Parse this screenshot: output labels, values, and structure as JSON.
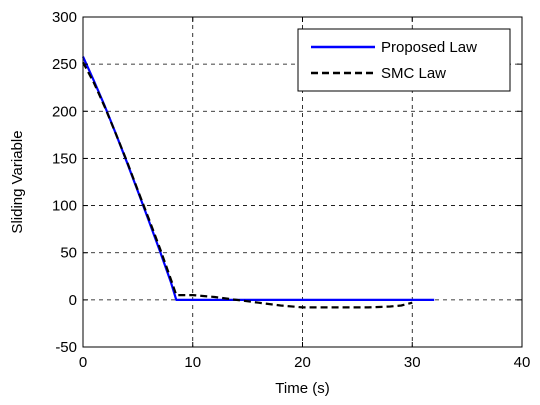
{
  "chart_data": {
    "type": "line",
    "title": "",
    "xlabel": "Time (s)",
    "ylabel": "Sliding Variable",
    "xlim": [
      0,
      40
    ],
    "ylim": [
      -50,
      300
    ],
    "xticks": [
      0,
      10,
      20,
      30,
      40
    ],
    "yticks": [
      -50,
      0,
      50,
      100,
      150,
      200,
      250,
      300
    ],
    "x_tick_labels": [
      "0",
      "10",
      "20",
      "30",
      "40"
    ],
    "y_tick_labels": [
      "-50",
      "0",
      "50",
      "100",
      "150",
      "200",
      "250",
      "300"
    ],
    "grid": true,
    "grid_style": "dashed",
    "legend_position": "top-right",
    "series": [
      {
        "name": "Proposed Law",
        "color": "#0000ff",
        "line_style": "solid",
        "x": [
          0,
          1,
          2,
          3,
          4,
          5,
          6,
          7,
          8,
          8.5,
          10,
          15,
          20,
          25,
          30,
          32
        ],
        "y": [
          258,
          232,
          205,
          176,
          146,
          115,
          84,
          52,
          19,
          0,
          0,
          0,
          0,
          0,
          0,
          0
        ]
      },
      {
        "name": "SMC Law",
        "color": "#000000",
        "line_style": "dashed",
        "x": [
          0,
          1,
          2,
          3,
          4,
          5,
          6,
          7,
          8,
          8.5,
          10,
          12,
          14,
          16,
          18,
          20,
          22,
          24,
          26,
          28,
          29,
          30
        ],
        "y": [
          252,
          230,
          204,
          176,
          147,
          116,
          86,
          55,
          22,
          5,
          5,
          3,
          0,
          -3,
          -6,
          -8,
          -8,
          -8,
          -8,
          -7,
          -6,
          -3
        ]
      }
    ]
  }
}
